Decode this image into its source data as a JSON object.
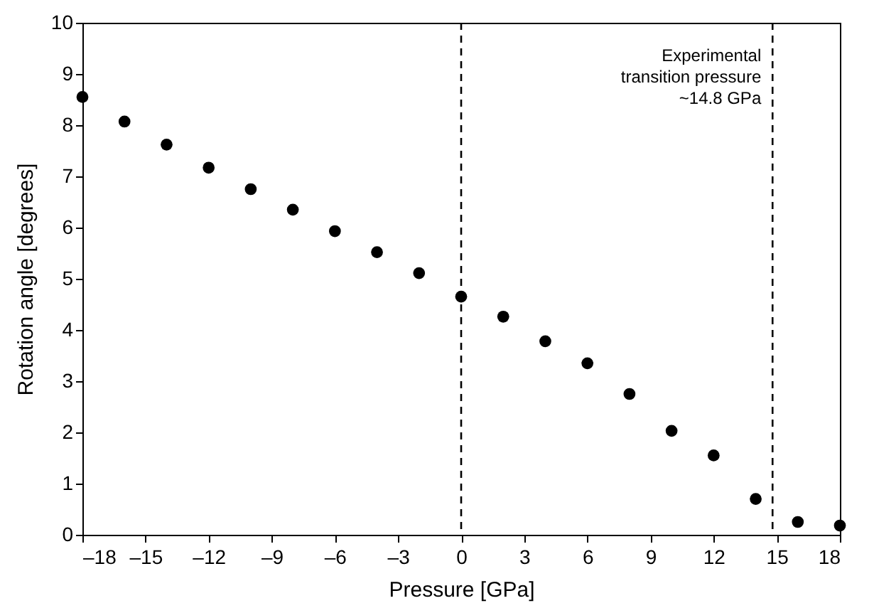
{
  "chart_data": {
    "type": "scatter",
    "xlabel": "Pressure [GPa]",
    "ylabel": "Rotation angle [degrees]",
    "x": [
      -18,
      -16,
      -14,
      -12,
      -10,
      -8,
      -6,
      -4,
      -2,
      0,
      2,
      4,
      6,
      8,
      10,
      12,
      14,
      16,
      18
    ],
    "series": [
      {
        "color": "#000000",
        "values": [
          8.55,
          8.07,
          7.62,
          7.17,
          6.75,
          6.35,
          5.93,
          5.52,
          5.11,
          4.65,
          4.26,
          3.78,
          3.35,
          2.75,
          2.03,
          1.55,
          0.7,
          0.25,
          0.18
        ]
      }
    ],
    "xlim": [
      -18,
      18
    ],
    "xticks": [
      {
        "value": -18,
        "label": "–18"
      },
      {
        "value": -15,
        "label": "–15"
      },
      {
        "value": -12,
        "label": "–12"
      },
      {
        "value": -9,
        "label": "–9"
      },
      {
        "value": -6,
        "label": "–6"
      },
      {
        "value": -3,
        "label": "–3"
      },
      0,
      3,
      6,
      9,
      12,
      15,
      18
    ],
    "ylim": [
      0,
      10
    ],
    "yticks": [
      0,
      1,
      2,
      3,
      4,
      5,
      6,
      7,
      8,
      9,
      10
    ],
    "grid": false,
    "marker": "circle",
    "ref_lines": [
      {
        "axis": "x",
        "value": 0,
        "line_style": "dashed",
        "color": "#000000"
      },
      {
        "axis": "x",
        "value": 14.8,
        "line_style": "dashed",
        "color": "#000000",
        "label": "Experimental\ntransition pressure\n~14.8 GPa"
      }
    ]
  }
}
